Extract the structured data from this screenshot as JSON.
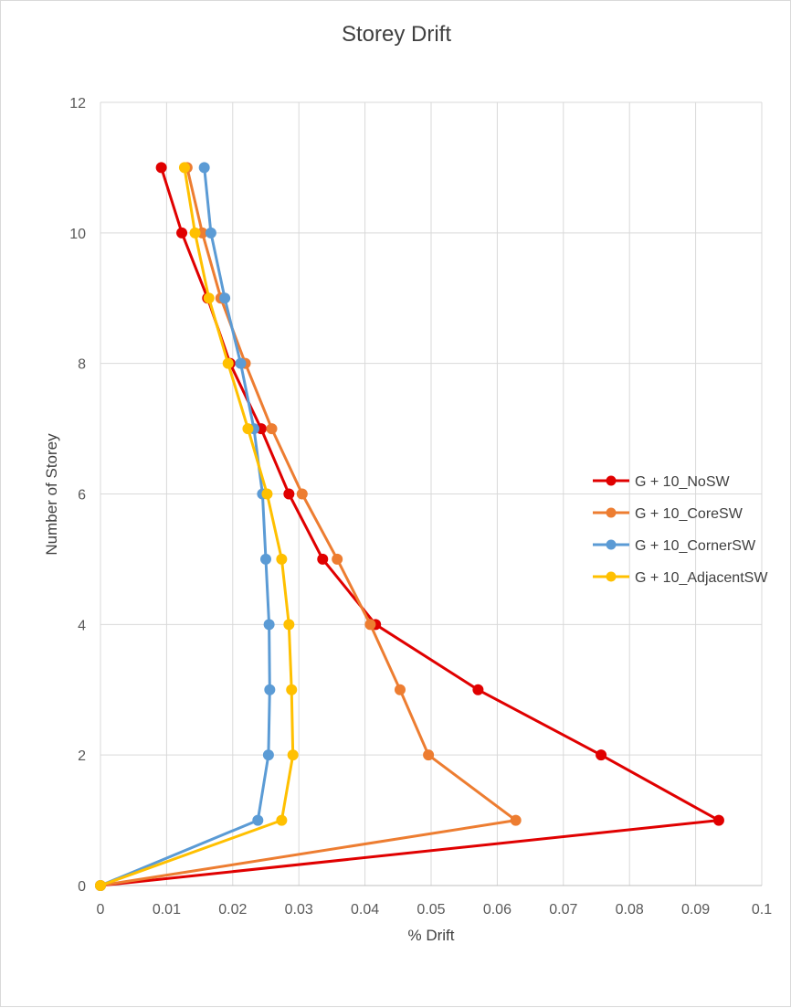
{
  "chart_data": {
    "type": "line",
    "title": "Storey Drift",
    "xlabel": "% Drift",
    "ylabel": "Number of Storey",
    "xlim": [
      0,
      0.1
    ],
    "ylim": [
      0,
      12
    ],
    "xticks": [
      0,
      0.01,
      0.02,
      0.03,
      0.04,
      0.05,
      0.06,
      0.07,
      0.08,
      0.09,
      0.1
    ],
    "yticks": [
      0,
      2,
      4,
      6,
      8,
      10,
      12
    ],
    "xtick_labels": [
      "0",
      "0.01",
      "0.02",
      "0.03",
      "0.04",
      "0.05",
      "0.06",
      "0.07",
      "0.08",
      "0.09",
      "0.1"
    ],
    "ytick_labels": [
      "0",
      "2",
      "4",
      "6",
      "8",
      "10",
      "12"
    ],
    "grid": true,
    "legend_position": "right",
    "series": [
      {
        "name": "G + 10_NoSW",
        "color": "#e00000",
        "points": [
          [
            0,
            0
          ],
          [
            0.0935,
            1
          ],
          [
            0.0757,
            2
          ],
          [
            0.0571,
            3
          ],
          [
            0.0416,
            4
          ],
          [
            0.0336,
            5
          ],
          [
            0.0285,
            6
          ],
          [
            0.0243,
            7
          ],
          [
            0.0196,
            8
          ],
          [
            0.0162,
            9
          ],
          [
            0.0123,
            10
          ],
          [
            0.0092,
            11
          ]
        ]
      },
      {
        "name": "G + 10_CoreSW",
        "color": "#ed7d31",
        "points": [
          [
            0,
            0
          ],
          [
            0.0628,
            1
          ],
          [
            0.0496,
            2
          ],
          [
            0.0453,
            3
          ],
          [
            0.0408,
            4
          ],
          [
            0.0358,
            5
          ],
          [
            0.0305,
            6
          ],
          [
            0.0259,
            7
          ],
          [
            0.0219,
            8
          ],
          [
            0.0182,
            9
          ],
          [
            0.0154,
            10
          ],
          [
            0.0131,
            11
          ]
        ]
      },
      {
        "name": "G + 10_CornerSW",
        "color": "#5b9bd5",
        "points": [
          [
            0,
            0
          ],
          [
            0.0238,
            1
          ],
          [
            0.0254,
            2
          ],
          [
            0.0256,
            3
          ],
          [
            0.0255,
            4
          ],
          [
            0.025,
            5
          ],
          [
            0.0245,
            6
          ],
          [
            0.0232,
            7
          ],
          [
            0.0212,
            8
          ],
          [
            0.0188,
            9
          ],
          [
            0.0167,
            10
          ],
          [
            0.0157,
            11
          ]
        ]
      },
      {
        "name": "G + 10_AdjacentSW",
        "color": "#ffc000",
        "points": [
          [
            0,
            0
          ],
          [
            0.0274,
            1
          ],
          [
            0.0291,
            2
          ],
          [
            0.0289,
            3
          ],
          [
            0.0285,
            4
          ],
          [
            0.0274,
            5
          ],
          [
            0.0252,
            6
          ],
          [
            0.0223,
            7
          ],
          [
            0.0193,
            8
          ],
          [
            0.0164,
            9
          ],
          [
            0.0143,
            10
          ],
          [
            0.0127,
            11
          ]
        ]
      }
    ]
  }
}
